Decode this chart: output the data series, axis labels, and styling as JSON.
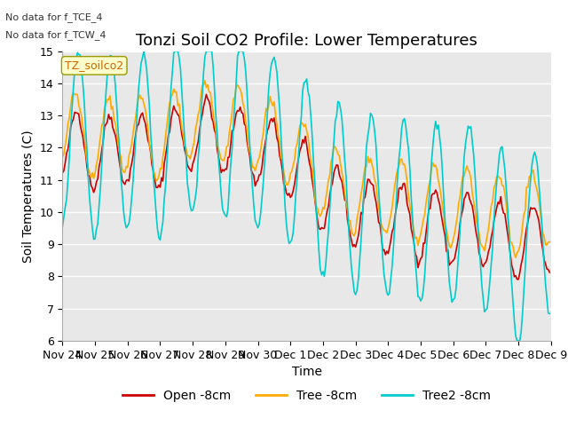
{
  "title": "Tonzi Soil CO2 Profile: Lower Temperatures",
  "ylabel": "Soil Temperatures (C)",
  "xlabel": "Time",
  "watermark_text": "TZ_soilco2",
  "no_data_text": [
    "No data for f_TCE_4",
    "No data for f_TCW_4"
  ],
  "ylim": [
    6.0,
    15.0
  ],
  "yticks": [
    6.0,
    7.0,
    8.0,
    9.0,
    10.0,
    11.0,
    12.0,
    13.0,
    14.0,
    15.0
  ],
  "xtick_labels": [
    "Nov 24",
    "Nov 25",
    "Nov 26",
    "Nov 27",
    "Nov 28",
    "Nov 29",
    "Nov 30",
    "Dec 1",
    "Dec 2",
    "Dec 3",
    "Dec 4",
    "Dec 5",
    "Dec 6",
    "Dec 7",
    "Dec 8",
    "Dec 9"
  ],
  "legend_labels": [
    "Open -8cm",
    "Tree -8cm",
    "Tree2 -8cm"
  ],
  "line_colors": [
    "#cc0000",
    "#ffaa00",
    "#00cccc"
  ],
  "bg_color": "#ffffff",
  "plot_bg_color": "#e8e8e8",
  "grid_color": "#ffffff",
  "title_fontsize": 13,
  "axis_fontsize": 10,
  "tick_fontsize": 9,
  "legend_fontsize": 10
}
